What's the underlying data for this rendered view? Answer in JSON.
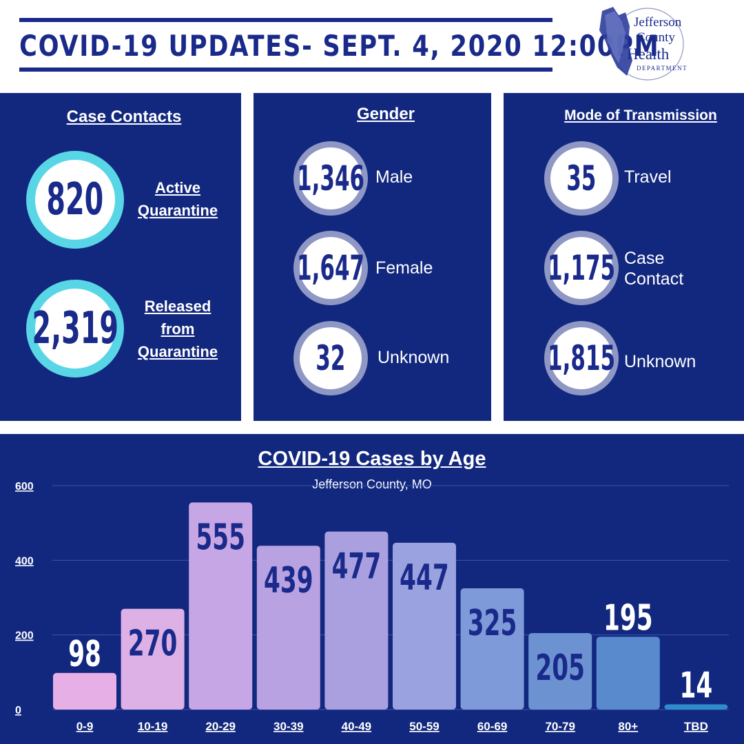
{
  "header": {
    "title": "COVID-19 UPDATES- SEPT. 4, 2020 12:00PM"
  },
  "logo": {
    "line1": "Jefferson",
    "line2": "County",
    "line3": "Health",
    "line4": "DEPARTMENT"
  },
  "case_contacts": {
    "title": "Case Contacts",
    "items": [
      {
        "value": "820",
        "label_lines": [
          "Active",
          "Quarantine"
        ]
      },
      {
        "value": "2,319",
        "label_lines": [
          "Released",
          "from",
          "Quarantine"
        ]
      }
    ]
  },
  "gender": {
    "title": "Gender",
    "items": [
      {
        "value": "1,346",
        "label": "Male"
      },
      {
        "value": "1,647",
        "label": "Female"
      },
      {
        "value": "32",
        "label": "Unknown"
      }
    ]
  },
  "transmission": {
    "title": "Mode of Transmission",
    "items": [
      {
        "value": "35",
        "label_lines": [
          "Travel"
        ]
      },
      {
        "value": "1,175",
        "label_lines": [
          "Case",
          "Contact"
        ]
      },
      {
        "value": "1,815",
        "label_lines": [
          "Unknown"
        ]
      }
    ]
  },
  "chart_data": {
    "type": "bar",
    "title": "COVID-19 Cases by Age",
    "subtitle": "Jefferson County, MO",
    "categories": [
      "0-9",
      "10-19",
      "20-29",
      "30-39",
      "40-49",
      "50-59",
      "60-69",
      "70-79",
      "80+",
      "TBD"
    ],
    "values": [
      98,
      270,
      555,
      439,
      477,
      447,
      325,
      205,
      195,
      14
    ],
    "yticks": [
      0,
      200,
      400,
      600
    ],
    "ylim": [
      0,
      600
    ],
    "grid": true,
    "colors": [
      "#e6b0e6",
      "#ddb0e6",
      "#c6a6e4",
      "#b8a2e2",
      "#aaa0e0",
      "#9aa2e0",
      "#7e9ad8",
      "#6c92d2",
      "#5a8ace",
      "#2f8ccc"
    ]
  }
}
